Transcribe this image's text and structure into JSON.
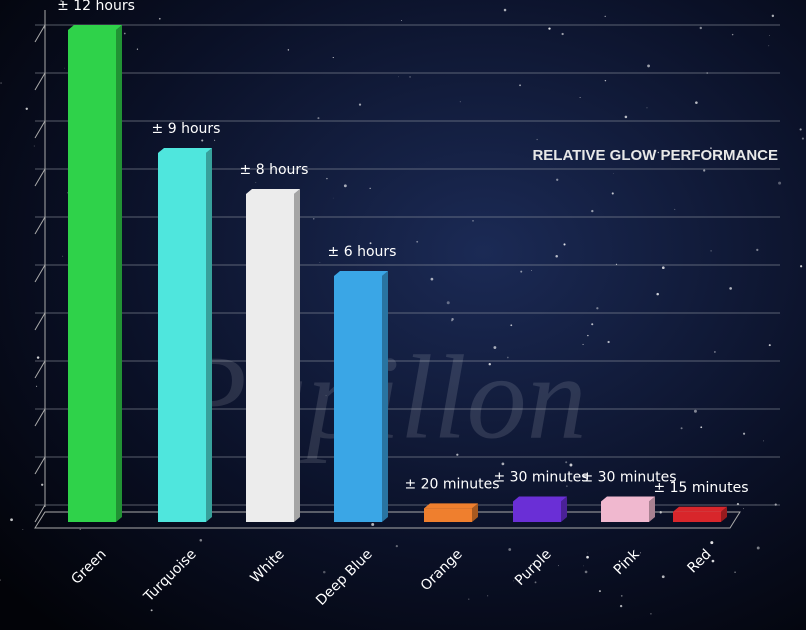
{
  "chart_data": {
    "type": "bar",
    "title": "RELATIVE GLOW PERFORMANCE",
    "watermark": "Papillon",
    "categories": [
      "Green",
      "Turquoise",
      "White",
      "Deep Blue",
      "Orange",
      "Purple",
      "Pink",
      "Red"
    ],
    "values": [
      12,
      9,
      8,
      6,
      0.3333,
      0.5,
      0.5,
      0.25
    ],
    "value_labels": [
      "± 12 hours",
      "± 9 hours",
      "± 8 hours",
      "± 6 hours",
      "± 20 minutes",
      "± 30 minutes",
      "± 30 minutes",
      "± 15 minutes"
    ],
    "colors": [
      "#2fd24a",
      "#4fe6dd",
      "#ececec",
      "#3aa6e6",
      "#ef7f2e",
      "#6a2fd6",
      "#f0b8cf",
      "#d8262b"
    ],
    "ylim": [
      0,
      12
    ]
  }
}
